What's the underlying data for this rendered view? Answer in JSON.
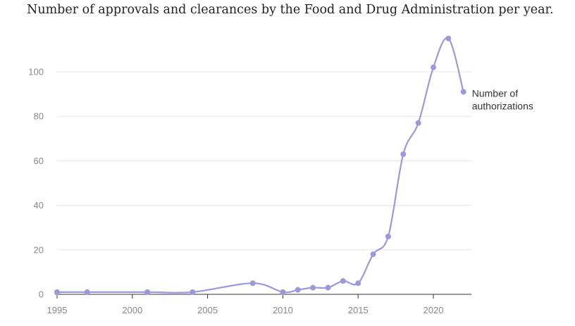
{
  "chart_data": {
    "type": "line",
    "title": "Number of approvals and clearances by the Food and Drug Administration per year.",
    "xlabel": "",
    "ylabel": "",
    "xlim": [
      1995,
      2022.5
    ],
    "ylim": [
      0,
      115
    ],
    "x_ticks": [
      1995,
      2000,
      2005,
      2010,
      2015,
      2020
    ],
    "y_ticks": [
      0,
      20,
      40,
      60,
      80,
      100
    ],
    "grid": "horizontal",
    "colors": {
      "line": "#9b98dc",
      "grid": "#e6e6e6",
      "axis": "#333333"
    },
    "series": [
      {
        "name": "Number of authorizations",
        "name_lines": [
          "Number of",
          "authorizations"
        ],
        "x": [
          1995,
          1997,
          2001,
          2004,
          2008,
          2010,
          2011,
          2012,
          2013,
          2014,
          2015,
          2016,
          2017,
          2018,
          2019,
          2020,
          2021,
          2022
        ],
        "y": [
          1,
          1,
          1,
          1,
          5,
          1,
          2,
          3,
          3,
          6,
          5,
          18,
          26,
          63,
          77,
          102,
          115,
          91
        ]
      }
    ]
  }
}
